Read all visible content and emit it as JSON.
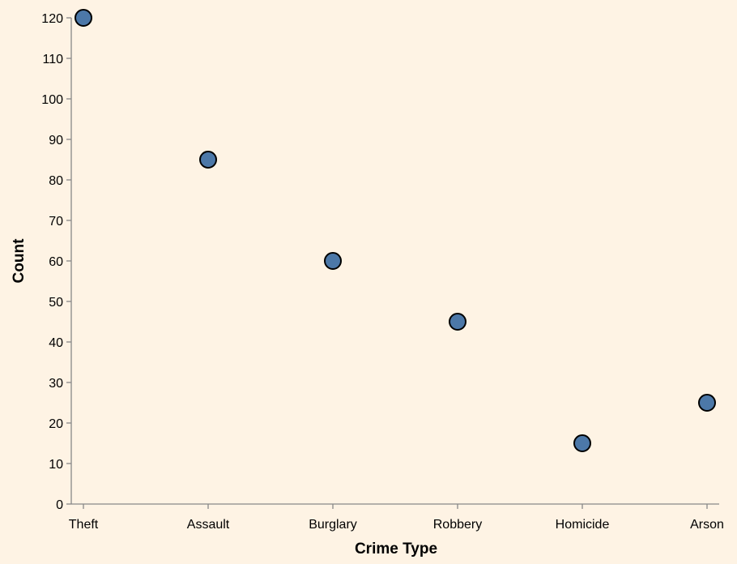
{
  "chart_data": {
    "type": "scatter",
    "xlabel": "Crime Type",
    "ylabel": "Count",
    "categories": [
      "Theft",
      "Assault",
      "Burglary",
      "Robbery",
      "Homicide",
      "Arson"
    ],
    "values": [
      120,
      85,
      60,
      45,
      15,
      25
    ],
    "ylim": [
      0,
      120
    ],
    "yticks": [
      0,
      10,
      20,
      30,
      40,
      50,
      60,
      70,
      80,
      90,
      100,
      110,
      120
    ],
    "grid": false,
    "colors": {
      "background": "#fef3e4",
      "point_fill": "#4c78a8",
      "point_stroke": "#000000",
      "axis": "#888888"
    }
  }
}
